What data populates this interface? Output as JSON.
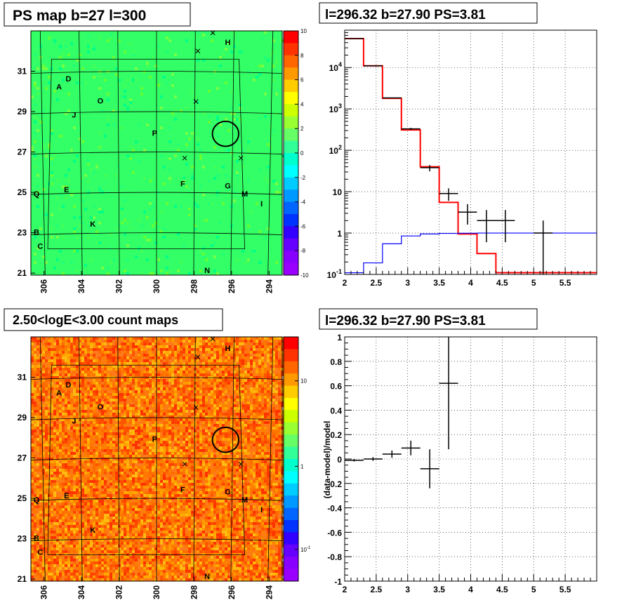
{
  "chart_data": [
    {
      "type": "heatmap",
      "title": "PS map b=27 l=300",
      "xlim": [
        306.7,
        293.3
      ],
      "ylim": [
        20.9,
        33.0
      ],
      "xticks": [
        "306",
        "304",
        "302",
        "300",
        "298",
        "296",
        "294"
      ],
      "yticks": [
        "31",
        "29",
        "27",
        "25",
        "23",
        "21"
      ],
      "colorbar": {
        "labels": [
          "10",
          "8",
          "6",
          "4",
          "2",
          "0",
          "-2",
          "-4",
          "-6",
          "-8",
          "-10"
        ],
        "colors": [
          "#ff0000",
          "#ff3300",
          "#ff6600",
          "#ff9900",
          "#ffcc00",
          "#ffff00",
          "#ccff00",
          "#99ff33",
          "#66ff66",
          "#33ff99",
          "#00ffcc",
          "#00ffff",
          "#00ccff",
          "#0099ff",
          "#0066ff",
          "#0033ff",
          "#3300ff",
          "#6600ff",
          "#8800ff",
          "#9900ff"
        ]
      },
      "base_color": "#33ff66",
      "sources": [
        {
          "label": "A",
          "l": 305.2,
          "b": 30.1
        },
        {
          "label": "D",
          "l": 304.7,
          "b": 30.5
        },
        {
          "label": "O",
          "l": 303.0,
          "b": 29.4
        },
        {
          "label": "J",
          "l": 304.4,
          "b": 28.7
        },
        {
          "label": "P",
          "l": 300.1,
          "b": 27.8
        },
        {
          "label": "H",
          "l": 296.2,
          "b": 32.3
        },
        {
          "label": "F",
          "l": 298.6,
          "b": 25.3
        },
        {
          "label": "G",
          "l": 296.2,
          "b": 25.2
        },
        {
          "label": "M",
          "l": 295.3,
          "b": 24.8
        },
        {
          "label": "I",
          "l": 294.4,
          "b": 24.3
        },
        {
          "label": "E",
          "l": 304.8,
          "b": 25.0
        },
        {
          "label": "Q",
          "l": 306.4,
          "b": 24.8
        },
        {
          "label": "K",
          "l": 303.4,
          "b": 23.3
        },
        {
          "label": "B",
          "l": 306.4,
          "b": 22.9
        },
        {
          "label": "C",
          "l": 306.2,
          "b": 22.2
        },
        {
          "label": "N",
          "l": 297.3,
          "b": 21.0
        }
      ],
      "markers": [
        {
          "l": 297.0,
          "b": 32.9
        },
        {
          "l": 297.8,
          "b": 32.0
        },
        {
          "l": 297.9,
          "b": 29.5
        },
        {
          "l": 298.5,
          "b": 26.7
        },
        {
          "l": 295.5,
          "b": 26.7
        }
      ],
      "circle": {
        "l": 296.32,
        "b": 27.9,
        "r": 0.7
      }
    },
    {
      "type": "line",
      "title": "l=296.32 b=27.90 PS=3.81",
      "xlim": [
        2,
        6
      ],
      "ylim": [
        0.1,
        80000
      ],
      "yscale": "log",
      "xticks": [
        "2",
        "2.5",
        "3",
        "3.5",
        "4",
        "4.5",
        "5",
        "5.5"
      ],
      "yticks": [
        "10^4",
        "10^3",
        "10^2",
        "10",
        "1",
        "10^-1"
      ],
      "grid": true,
      "series": [
        {
          "color": "#ff0000",
          "edges": [
            2.0,
            2.3,
            2.6,
            2.9,
            3.2,
            3.5,
            3.8,
            4.1,
            4.4,
            6.0
          ],
          "values": [
            50000,
            11000,
            1800,
            310,
            40,
            5.5,
            0.95,
            0.32,
            0.11
          ]
        },
        {
          "color": "#0000ff",
          "edges": [
            2.0,
            2.3,
            2.6,
            2.9,
            3.2,
            3.5,
            3.8,
            4.1,
            4.4,
            4.8,
            6.0
          ],
          "values": [
            0.11,
            0.19,
            0.55,
            0.85,
            0.95,
            0.98,
            0.99,
            1.0,
            1.0,
            1.0
          ]
        }
      ],
      "points": [
        {
          "x": 2.15,
          "y": 50000,
          "xerr": 0.15,
          "ylo": 49500,
          "yhi": 50500
        },
        {
          "x": 2.45,
          "y": 11000,
          "xerr": 0.15,
          "ylo": 10800,
          "yhi": 11200
        },
        {
          "x": 2.75,
          "y": 1850,
          "xerr": 0.15,
          "ylo": 1800,
          "yhi": 1900
        },
        {
          "x": 3.05,
          "y": 330,
          "xerr": 0.15,
          "ylo": 310,
          "yhi": 350
        },
        {
          "x": 3.35,
          "y": 38,
          "xerr": 0.15,
          "ylo": 31,
          "yhi": 44
        },
        {
          "x": 3.65,
          "y": 9,
          "xerr": 0.15,
          "ylo": 6,
          "yhi": 12
        },
        {
          "x": 3.95,
          "y": 3.2,
          "xerr": 0.15,
          "ylo": 1.6,
          "yhi": 5
        },
        {
          "x": 4.25,
          "y": 2,
          "xerr": 0.15,
          "ylo": 0.6,
          "yhi": 3.6
        },
        {
          "x": 4.55,
          "y": 2,
          "xerr": 0.15,
          "ylo": 0.6,
          "yhi": 3.6
        },
        {
          "x": 5.15,
          "y": 1,
          "xerr": 0.15,
          "ylo": 0.1,
          "yhi": 2
        }
      ]
    },
    {
      "type": "heatmap",
      "title": "2.50<logE<3.00 count maps",
      "xlim": [
        306.7,
        293.3
      ],
      "ylim": [
        20.9,
        33.0
      ],
      "xticks": [
        "306",
        "304",
        "302",
        "300",
        "298",
        "296",
        "294"
      ],
      "yticks": [
        "31",
        "29",
        "27",
        "25",
        "23",
        "21"
      ],
      "colorbar": {
        "labels": [
          "10",
          "1",
          "10^-1"
        ],
        "colors": [
          "#ff0000",
          "#ff3300",
          "#ff6600",
          "#ff9900",
          "#ffcc00",
          "#ffff00",
          "#ccff00",
          "#99ff33",
          "#66ff66",
          "#33ff99",
          "#00ffcc",
          "#00ffff",
          "#00ccff",
          "#0099ff",
          "#0066ff",
          "#0033ff",
          "#3300ff",
          "#6600ff",
          "#8800ff",
          "#9900ff"
        ]
      },
      "base_color": "#ff7a1a",
      "sources": [
        {
          "label": "A",
          "l": 305.2,
          "b": 30.1
        },
        {
          "label": "D",
          "l": 304.7,
          "b": 30.5
        },
        {
          "label": "O",
          "l": 303.0,
          "b": 29.4
        },
        {
          "label": "J",
          "l": 304.4,
          "b": 28.7
        },
        {
          "label": "P",
          "l": 300.1,
          "b": 27.8
        },
        {
          "label": "H",
          "l": 296.2,
          "b": 32.3
        },
        {
          "label": "F",
          "l": 298.6,
          "b": 25.3
        },
        {
          "label": "G",
          "l": 296.2,
          "b": 25.2
        },
        {
          "label": "M",
          "l": 295.3,
          "b": 24.8
        },
        {
          "label": "I",
          "l": 294.4,
          "b": 24.3
        },
        {
          "label": "E",
          "l": 304.8,
          "b": 25.0
        },
        {
          "label": "Q",
          "l": 306.4,
          "b": 24.8
        },
        {
          "label": "K",
          "l": 303.4,
          "b": 23.3
        },
        {
          "label": "B",
          "l": 306.4,
          "b": 22.9
        },
        {
          "label": "C",
          "l": 306.2,
          "b": 22.2
        },
        {
          "label": "N",
          "l": 297.3,
          "b": 21.0
        }
      ],
      "markers": [
        {
          "l": 297.0,
          "b": 32.9
        },
        {
          "l": 297.8,
          "b": 32.0
        },
        {
          "l": 297.9,
          "b": 29.5
        },
        {
          "l": 298.5,
          "b": 26.7
        },
        {
          "l": 295.5,
          "b": 26.7
        }
      ],
      "circle": {
        "l": 296.32,
        "b": 27.9,
        "r": 0.7
      }
    },
    {
      "type": "scatter",
      "title": "l=296.32 b=27.90 PS=3.81",
      "ylabel": "(data-model)/model",
      "xlim": [
        2,
        6
      ],
      "ylim": [
        -1,
        1
      ],
      "xticks": [
        "2",
        "2.5",
        "3",
        "3.5",
        "4",
        "4.5",
        "5",
        "5.5"
      ],
      "yticks": [
        "1",
        "0.8",
        "0.6",
        "0.4",
        "0.2",
        "0",
        "-0.2",
        "-0.4",
        "-0.6",
        "-0.8",
        "-1"
      ],
      "grid": true,
      "points": [
        {
          "x": 2.15,
          "y": -0.01,
          "xerr": 0.15,
          "yerr": 0.01
        },
        {
          "x": 2.45,
          "y": 0.0,
          "xerr": 0.15,
          "yerr": 0.015
        },
        {
          "x": 2.75,
          "y": 0.04,
          "xerr": 0.15,
          "yerr": 0.03
        },
        {
          "x": 3.05,
          "y": 0.09,
          "xerr": 0.15,
          "yerr": 0.06
        },
        {
          "x": 3.35,
          "y": -0.08,
          "xerr": 0.15,
          "yerr": 0.16
        },
        {
          "x": 3.65,
          "y": 0.62,
          "xerr": 0.15,
          "yerr": 0.54
        }
      ]
    }
  ]
}
